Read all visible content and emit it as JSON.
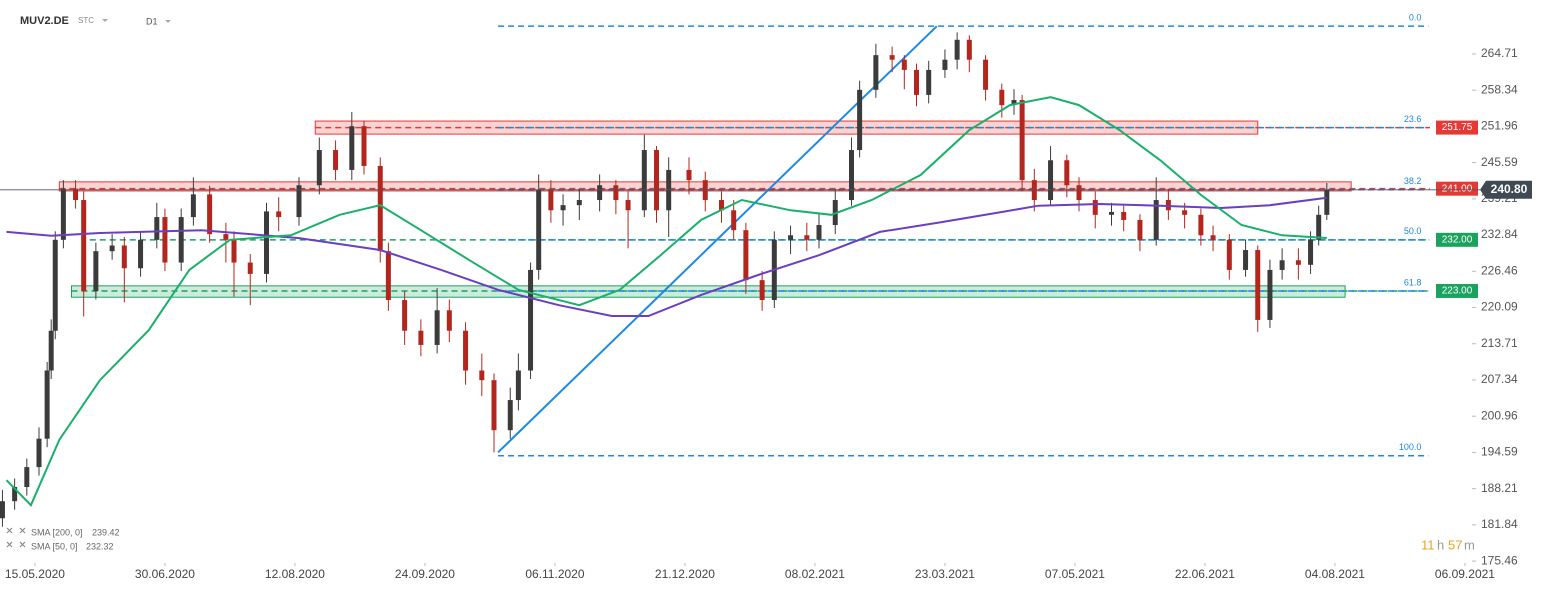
{
  "header": {
    "symbol": "MUV2.DE",
    "mode": "STC",
    "interval": "D1"
  },
  "countdown": {
    "hours": "11",
    "hours_unit": "h",
    "minutes": "57",
    "minutes_unit": "m"
  },
  "chart_data": {
    "type": "candlestick",
    "ylim": [
      175.3,
      273.5
    ],
    "yticks": [
      175.46,
      181.84,
      188.21,
      194.59,
      200.96,
      207.34,
      213.71,
      220.09,
      226.46,
      232.84,
      239.21,
      245.59,
      251.96,
      258.34,
      264.71
    ],
    "xlim": [
      -8.6,
      343.4
    ],
    "xticks": [
      {
        "value": 0,
        "label": "15.05.2020"
      },
      {
        "value": 32,
        "label": "30.06.2020"
      },
      {
        "value": 64,
        "label": "12.08.2020"
      },
      {
        "value": 96,
        "label": "24.09.2020"
      },
      {
        "value": 128,
        "label": "06.11.2020"
      },
      {
        "value": 160,
        "label": "21.12.2020"
      },
      {
        "value": 192,
        "label": "08.02.2021"
      },
      {
        "value": 224,
        "label": "23.03.2021"
      },
      {
        "value": 256,
        "label": "07.05.2021"
      },
      {
        "value": 288,
        "label": "22.06.2021"
      },
      {
        "value": 320,
        "label": "04.08.2021"
      },
      {
        "value": 352,
        "label": "06.09.2021"
      }
    ],
    "candles": {
      "up_color": "#3b3b3b",
      "down_color": "#b3261e",
      "x": [
        -8,
        -5,
        -2,
        1,
        3,
        4,
        5,
        7,
        10,
        12,
        15,
        19,
        22,
        26,
        30,
        32,
        36,
        39,
        43,
        47,
        49,
        53,
        57,
        60,
        65,
        70,
        74,
        78,
        81,
        85,
        87,
        91,
        95,
        99,
        102,
        106,
        110,
        113,
        117,
        119,
        122,
        124,
        127,
        130,
        134,
        139,
        143,
        146,
        150,
        153,
        156,
        161,
        165,
        169,
        172,
        175,
        179,
        182,
        186,
        190,
        193,
        197,
        201,
        203,
        207,
        211,
        214,
        217,
        220,
        224,
        227,
        230,
        234,
        238,
        241,
        243,
        246,
        250,
        254,
        257,
        261,
        265,
        268,
        272,
        276,
        279,
        283,
        287,
        290,
        294,
        298,
        301,
        304,
        307,
        311,
        314,
        316,
        318
      ],
      "open": [
        183,
        186,
        188.5,
        192,
        197,
        209,
        216,
        232,
        241,
        239,
        223,
        230,
        231,
        227,
        232,
        236,
        228,
        236,
        240,
        233,
        232,
        228,
        226,
        237,
        236,
        241.6,
        247.8,
        244.3,
        252,
        245,
        230,
        221.4,
        216,
        213.5,
        219.6,
        216,
        209,
        207.3,
        198.5,
        203.8,
        209,
        226.7,
        240.8,
        237.2,
        238.1,
        239,
        241.6,
        239,
        237.2,
        247.8,
        237.2,
        244.3,
        242.5,
        239,
        237.2,
        233.7,
        224.9,
        221.4,
        232,
        232.8,
        232,
        234.6,
        239,
        247.8,
        258.4,
        264.5,
        263.7,
        261.9,
        257.5,
        261.9,
        263.7,
        267.2,
        263.7,
        258.4,
        255.7,
        256.6,
        242.5,
        239,
        246,
        241.6,
        239,
        236.4,
        236.9,
        235.5,
        232,
        239,
        237.2,
        236.4,
        232.8,
        232,
        226.7,
        230.2,
        217.9,
        226.7,
        228.4,
        227.6,
        232,
        236.4
      ],
      "high": [
        188,
        190,
        193.5,
        199,
        210.5,
        218,
        233.5,
        242.5,
        242.5,
        240.5,
        231.5,
        233,
        232.5,
        233.5,
        238.5,
        237.5,
        237.5,
        243,
        241.5,
        235,
        233.5,
        229.5,
        238.5,
        239.5,
        243,
        250,
        249.5,
        254.5,
        253,
        246.5,
        231.5,
        223,
        218,
        223.5,
        221.5,
        217.5,
        212,
        208.5,
        206,
        212,
        228,
        243.5,
        242.5,
        240,
        241,
        243.5,
        242.5,
        240.5,
        250.5,
        248.5,
        246.5,
        246.5,
        244,
        240.5,
        239,
        235,
        226.5,
        233.5,
        234.5,
        235,
        236.5,
        241,
        250,
        260,
        266.5,
        266,
        264.5,
        263,
        263.5,
        265.5,
        268.5,
        268,
        264.5,
        259.5,
        258.5,
        257.5,
        244.5,
        248.5,
        247,
        243,
        240.5,
        238.5,
        238,
        236.5,
        243,
        241,
        238.5,
        237.5,
        234.5,
        233,
        232,
        231,
        228.5,
        230.5,
        230.5,
        233.5,
        238,
        242
      ],
      "low": [
        181.5,
        184.5,
        187,
        190.5,
        195.5,
        207.5,
        214.5,
        230.5,
        237.5,
        218.5,
        221.5,
        228.5,
        221,
        225.5,
        230.5,
        226.5,
        226.5,
        234.5,
        231.5,
        228,
        222,
        220.5,
        224.5,
        233.5,
        234.5,
        240,
        242.5,
        242.5,
        243.5,
        228,
        219.5,
        213.5,
        211.5,
        212,
        214,
        206.5,
        204.5,
        194.6,
        197,
        202,
        207.5,
        225,
        235,
        234.5,
        235.5,
        237,
        236.5,
        230.5,
        236,
        235,
        232.5,
        240,
        237,
        235,
        232,
        222.5,
        219.5,
        220,
        229.5,
        230,
        230.5,
        233,
        238,
        246.5,
        257,
        261.5,
        258.5,
        255.5,
        256,
        260.5,
        262,
        261.5,
        256.5,
        253.5,
        254,
        240.5,
        237,
        238,
        239.5,
        237,
        234,
        234.5,
        233.5,
        230,
        231,
        235.5,
        234,
        231,
        230,
        225,
        225.5,
        215.8,
        216.5,
        225,
        225,
        226,
        231,
        235.5
      ],
      "close": [
        186,
        188.5,
        192,
        197,
        209,
        216,
        232,
        241,
        239,
        223,
        230,
        231,
        227,
        232,
        236,
        228,
        236,
        240,
        233,
        232,
        228,
        226,
        237,
        236,
        241.6,
        247.8,
        244.3,
        252,
        245,
        230,
        221.4,
        216,
        213.5,
        219.6,
        216,
        209,
        207.3,
        198.5,
        203.8,
        209,
        226.7,
        240.8,
        237.2,
        238.1,
        239,
        241.6,
        239,
        237.2,
        247.8,
        237.2,
        244.3,
        242.5,
        239,
        237.2,
        233.7,
        224.9,
        221.4,
        232,
        232.8,
        232,
        234.6,
        239,
        247.8,
        258.4,
        264.5,
        263.7,
        261.9,
        257.5,
        261.9,
        263.7,
        267.2,
        263.7,
        258.4,
        255.7,
        256.6,
        242.5,
        239,
        246,
        241.6,
        239,
        236.4,
        236.9,
        235.5,
        232,
        239,
        237.2,
        236.4,
        232.8,
        232,
        226.7,
        230.2,
        217.9,
        226.7,
        228.4,
        227.6,
        232,
        236.4,
        240.8
      ]
    },
    "series": [
      {
        "name": "SMA [200, 0]",
        "color": "#6a3fc1",
        "x": [
          -7,
          4,
          16,
          41,
          65,
          85,
          100,
          114,
          129,
          142,
          151,
          164,
          178,
          193,
          208,
          223,
          238,
          247,
          262,
          277,
          292,
          304,
          318
        ],
        "values": [
          233.4,
          232.7,
          233.2,
          233.7,
          232.3,
          230.2,
          226.7,
          223.2,
          220.5,
          218.6,
          218.6,
          222.3,
          225.8,
          229.3,
          233.4,
          235.1,
          236.9,
          238,
          238.3,
          238,
          237.6,
          238.1,
          239.42
        ]
      },
      {
        "name": "SMA [50, 0]",
        "color": "#19b06b",
        "x": [
          -7,
          -1,
          6,
          16,
          28,
          38,
          48,
          63,
          75,
          85,
          95,
          107,
          119,
          134,
          144,
          154,
          164,
          174,
          186,
          196,
          206,
          218,
          230,
          240,
          250,
          257,
          267,
          277,
          287,
          297,
          307,
          318
        ],
        "values": [
          189.7,
          185.3,
          196.8,
          207.3,
          216.1,
          226.7,
          232,
          232.8,
          236.4,
          238.1,
          233.7,
          228.4,
          223.2,
          220.5,
          223.2,
          229.3,
          235.5,
          239,
          237.2,
          236.4,
          239,
          243.4,
          251.3,
          255.7,
          257.1,
          255.7,
          251.3,
          246,
          239.9,
          234.6,
          232.8,
          232.32
        ]
      }
    ],
    "levels": [
      {
        "value": 251.75,
        "color": "#e53935",
        "zone": [
          250.6,
          252.9
        ],
        "x": [
          69,
          301
        ]
      },
      {
        "value": 241,
        "label": "241.00",
        "color": "#e53935",
        "zone": [
          240.6,
          242.2
        ],
        "x": [
          6,
          324
        ]
      },
      {
        "value": 232,
        "label": "232.00",
        "color": "#19a35f",
        "x": [
          13.5,
          13.5
        ]
      },
      {
        "value": 223,
        "label": "223.00",
        "color": "#19a35f",
        "zone": [
          221.9,
          223.9
        ],
        "x": [
          9,
          322.5
        ]
      }
    ],
    "fib_levels": [
      {
        "value": 269.6,
        "label": "0.0"
      },
      {
        "value": 251.75,
        "label": "23.6"
      },
      {
        "value": 240.8,
        "label": "38.2"
      },
      {
        "value": 232,
        "label": "50.0"
      },
      {
        "value": 223,
        "label": "61.8"
      },
      {
        "value": 194.0,
        "label": "100.0"
      }
    ],
    "fib_x": [
      114,
      343
    ],
    "fib_color": "#1e88e5",
    "trendline": {
      "color": "#1e88e5",
      "x": [
        114,
        222
      ],
      "values": [
        194.6,
        269.6
      ]
    },
    "last_price": {
      "value": 240.8,
      "label": "240.80"
    }
  }
}
